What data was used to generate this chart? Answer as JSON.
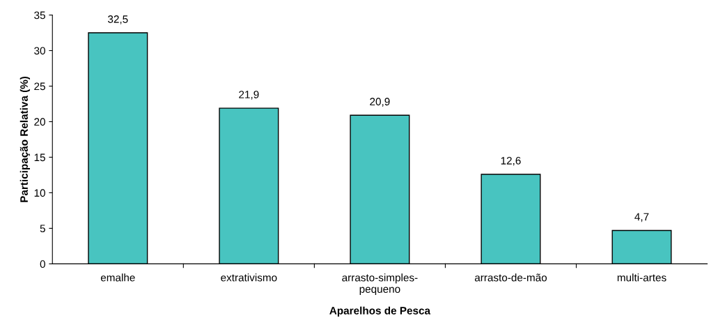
{
  "chart_data": {
    "type": "bar",
    "xlabel": "Aparelhos de Pesca",
    "ylabel": "Participação Relativa (%)",
    "categories": [
      "emalhe",
      "extrativismo",
      "arrasto-simples-\npequeno",
      "arrasto-de-mão",
      "multi-artes"
    ],
    "values": [
      32.5,
      21.9,
      20.9,
      12.6,
      4.7
    ],
    "value_labels": [
      "32,5",
      "21,9",
      "20,9",
      "12,6",
      "4,7"
    ],
    "color": "#48c4c0",
    "ylim": [
      0,
      35
    ],
    "yticks": [
      0,
      5,
      10,
      15,
      20,
      25,
      30,
      35
    ],
    "grid": false,
    "legend": false
  }
}
